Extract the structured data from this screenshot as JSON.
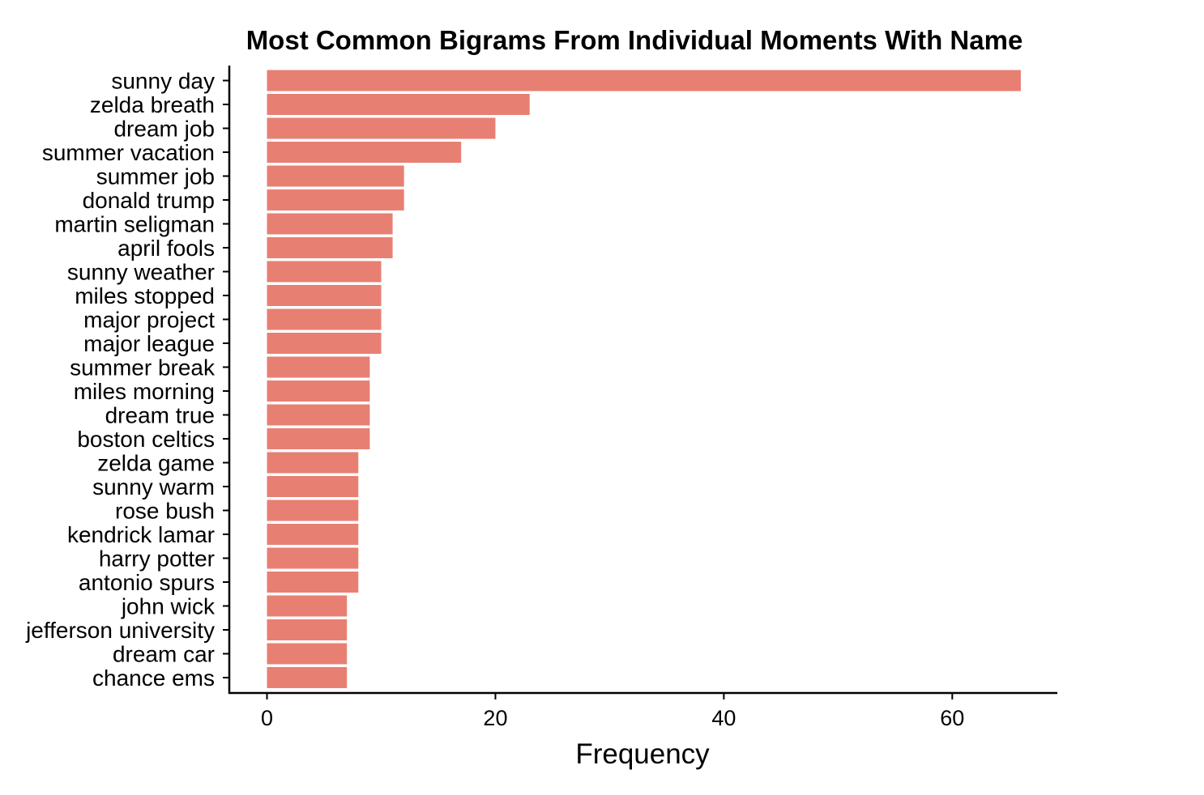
{
  "chart_data": {
    "type": "bar",
    "orientation": "horizontal",
    "title": "Most Common Bigrams From Individual Moments With Name",
    "xlabel": "Frequency",
    "ylabel": "",
    "xlim": [
      -3.3,
      69.2
    ],
    "xticks": [
      0,
      20,
      40,
      60
    ],
    "xtick_labels": [
      "0",
      "20",
      "40",
      "60"
    ],
    "bar_color": "#E87F73",
    "grid": false,
    "categories": [
      "sunny day",
      "zelda breath",
      "dream job",
      "summer vacation",
      "summer job",
      "donald trump",
      "martin seligman",
      "april fools",
      "sunny weather",
      "miles stopped",
      "major project",
      "major league",
      "summer break",
      "miles morning",
      "dream true",
      "boston celtics",
      "zelda game",
      "sunny warm",
      "rose bush",
      "kendrick lamar",
      "harry potter",
      "antonio spurs",
      "john wick",
      "jefferson university",
      "dream car",
      "chance ems"
    ],
    "values": [
      66,
      23,
      20,
      17,
      12,
      12,
      11,
      11,
      10,
      10,
      10,
      10,
      9,
      9,
      9,
      9,
      8,
      8,
      8,
      8,
      8,
      8,
      7,
      7,
      7,
      7
    ]
  }
}
